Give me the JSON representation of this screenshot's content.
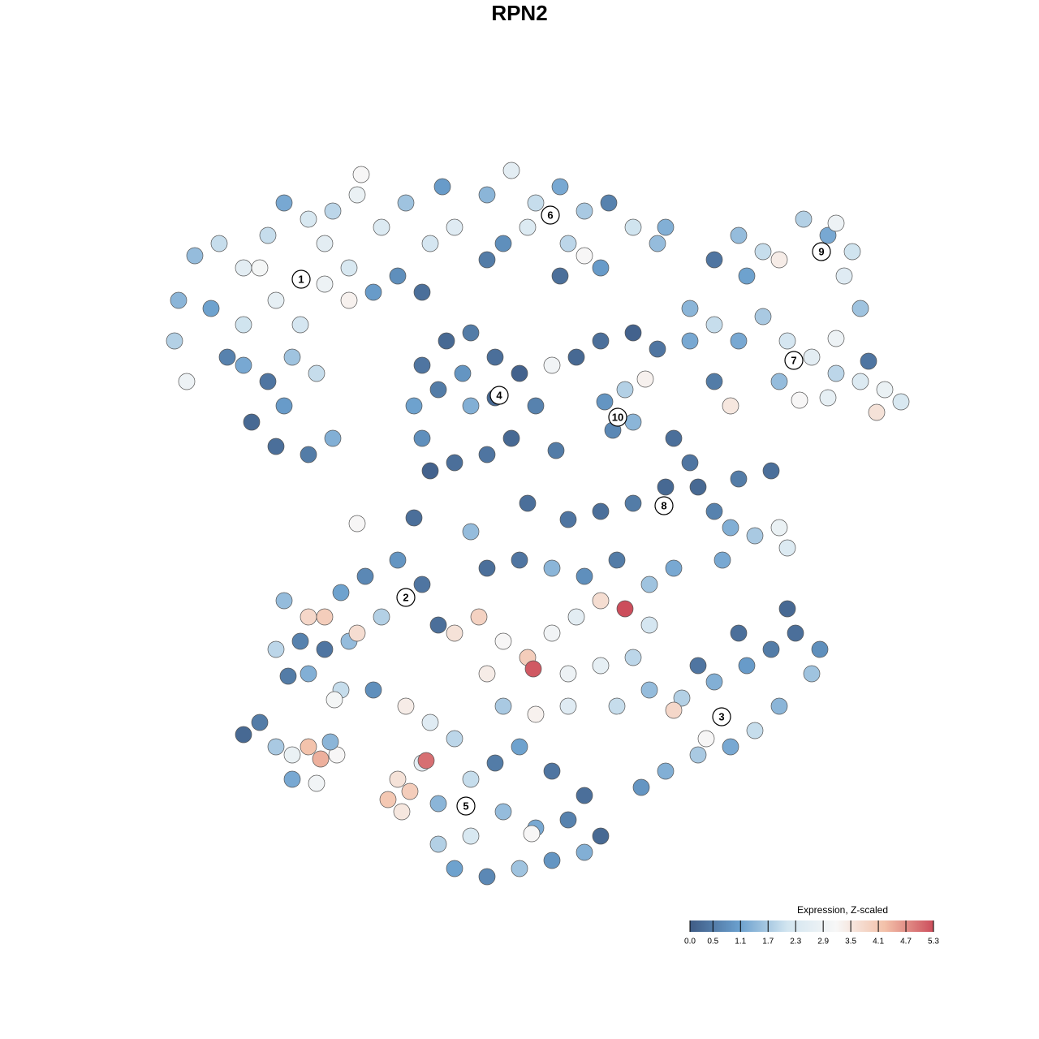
{
  "chart_data": {
    "type": "scatter",
    "title": "RPN2",
    "xlim": [
      0,
      1280
    ],
    "ylim": [
      1280,
      0
    ],
    "x": [
      240,
      270,
      300,
      330,
      350,
      380,
      410,
      440,
      470,
      500,
      530,
      560,
      545,
      220,
      215,
      260,
      300,
      340,
      370,
      400,
      430,
      460,
      490,
      520,
      300,
      330,
      360,
      390,
      310,
      340,
      380,
      410,
      350,
      280,
      230,
      400,
      320,
      430,
      445,
      600,
      630,
      660,
      690,
      720,
      750,
      780,
      810,
      620,
      650,
      700,
      740,
      690,
      720,
      600,
      820,
      520,
      550,
      580,
      610,
      640,
      660,
      630,
      600,
      560,
      520,
      510,
      540,
      580,
      610,
      570,
      530,
      680,
      745,
      770,
      780,
      755,
      795,
      710,
      740,
      780,
      810,
      850,
      880,
      910,
      940,
      960,
      990,
      1020,
      1050,
      1040,
      1060,
      1030,
      920,
      850,
      880,
      910,
      940,
      970,
      1000,
      1030,
      1060,
      1090,
      1110,
      1020,
      960,
      880,
      900,
      985,
      1080,
      1030,
      1070,
      830,
      850,
      860,
      880,
      900,
      930,
      960,
      950,
      910,
      820,
      780,
      740,
      700,
      890,
      970,
      350,
      380,
      400,
      420,
      450,
      490,
      520,
      470,
      430,
      400,
      370,
      340,
      380,
      420,
      460,
      540,
      440,
      355,
      412,
      440,
      560,
      590,
      620,
      650,
      680,
      710,
      740,
      770,
      800,
      600,
      640,
      680,
      720,
      760,
      800,
      830,
      657,
      600,
      700,
      740,
      780,
      620,
      660,
      700,
      760,
      800,
      840,
      880,
      920,
      950,
      980,
      1010,
      1000,
      960,
      930,
      900,
      860,
      820,
      790,
      860,
      910,
      970,
      830,
      870,
      500,
      530,
      560,
      520,
      490,
      525,
      505,
      478,
      540,
      580,
      610,
      640,
      680,
      720,
      700,
      740,
      660,
      620,
      580,
      540,
      560,
      600,
      640,
      680,
      720,
      655,
      495,
      300,
      320,
      340,
      360,
      380,
      395,
      415,
      360,
      390,
      407,
      510,
      580,
      650,
      685
    ],
    "y": [
      315,
      300,
      330,
      290,
      250,
      270,
      260,
      240,
      280,
      250,
      300,
      280,
      230,
      370,
      420,
      380,
      400,
      370,
      400,
      350,
      330,
      360,
      340,
      360,
      450,
      470,
      440,
      460,
      520,
      550,
      560,
      540,
      500,
      440,
      470,
      300,
      330,
      370,
      215,
      240,
      210,
      250,
      230,
      260,
      250,
      280,
      300,
      300,
      280,
      300,
      330,
      340,
      315,
      320,
      280,
      450,
      420,
      410,
      440,
      460,
      500,
      540,
      560,
      570,
      540,
      500,
      480,
      500,
      490,
      460,
      580,
      450,
      495,
      480,
      520,
      530,
      467,
      440,
      420,
      410,
      430,
      420,
      320,
      290,
      310,
      320,
      270,
      290,
      310,
      340,
      380,
      275,
      340,
      380,
      400,
      420,
      390,
      420,
      440,
      460,
      470,
      480,
      495,
      490,
      470,
      470,
      500,
      493,
      508,
      417,
      445,
      540,
      570,
      600,
      630,
      650,
      660,
      650,
      580,
      590,
      600,
      620,
      630,
      640,
      690,
      675,
      740,
      760,
      760,
      730,
      710,
      690,
      720,
      760,
      790,
      800,
      790,
      800,
      830,
      850,
      850,
      770,
      780,
      833,
      862,
      645,
      780,
      760,
      790,
      810,
      780,
      760,
      740,
      750,
      770,
      700,
      690,
      700,
      710,
      690,
      720,
      700,
      824,
      830,
      830,
      820,
      810,
      870,
      880,
      870,
      870,
      850,
      860,
      840,
      820,
      800,
      780,
      800,
      830,
      870,
      900,
      920,
      930,
      950,
      970,
      820,
      780,
      750,
      875,
      910,
      870,
      890,
      910,
      940,
      960,
      937,
      975,
      985,
      990,
      960,
      940,
      920,
      950,
      980,
      1010,
      1030,
      1020,
      1000,
      1030,
      1040,
      1070,
      1080,
      1070,
      1060,
      1050,
      1027,
      1000,
      905,
      890,
      920,
      930,
      920,
      935,
      930,
      960,
      965,
      914,
      638,
      655,
      620,
      555
    ],
    "values": [
      1.5,
      2.0,
      2.6,
      2.0,
      1.2,
      2.3,
      1.9,
      2.8,
      2.4,
      1.6,
      2.2,
      2.5,
      1.0,
      1.4,
      1.8,
      1.1,
      2.1,
      2.7,
      2.2,
      2.9,
      2.3,
      1.0,
      0.8,
      0.3,
      1.2,
      0.4,
      1.6,
      2.0,
      0.2,
      0.3,
      0.5,
      1.3,
      1.0,
      0.6,
      2.9,
      2.6,
      3.1,
      3.3,
      3.2,
      1.4,
      2.6,
      2.0,
      1.2,
      1.7,
      0.6,
      2.1,
      1.5,
      0.8,
      2.4,
      1.9,
      1.0,
      0.3,
      3.2,
      0.5,
      1.3,
      0.4,
      0.2,
      0.5,
      0.3,
      0.1,
      0.6,
      0.2,
      0.4,
      0.3,
      0.8,
      1.1,
      0.5,
      1.3,
      0.2,
      0.9,
      0.1,
      3.0,
      0.9,
      1.8,
      1.4,
      0.7,
      3.3,
      0.2,
      0.3,
      0.1,
      0.4,
      1.2,
      0.4,
      1.5,
      2.0,
      3.4,
      1.8,
      1.2,
      2.1,
      2.5,
      1.6,
      2.9,
      1.1,
      1.4,
      2.0,
      1.2,
      1.7,
      2.2,
      2.6,
      1.9,
      2.4,
      2.8,
      2.3,
      2.7,
      1.5,
      0.5,
      3.5,
      3.2,
      3.6,
      2.9,
      0.4,
      0.3,
      0.4,
      0.2,
      0.6,
      1.3,
      1.7,
      2.8,
      0.3,
      0.5,
      0.2,
      0.5,
      0.3,
      0.4,
      1.2,
      2.4,
      1.5,
      3.8,
      4.0,
      1.1,
      0.7,
      0.9,
      0.4,
      1.8,
      1.5,
      0.4,
      0.6,
      1.9,
      1.3,
      2.0,
      0.8,
      0.3,
      3.7,
      0.5,
      3.1,
      3.2,
      3.6,
      3.9,
      3.2,
      4.0,
      3.0,
      2.6,
      3.7,
      5.3,
      2.2,
      0.3,
      0.4,
      1.4,
      0.8,
      0.5,
      1.6,
      1.2,
      5.2,
      3.4,
      2.9,
      2.7,
      1.9,
      1.7,
      3.3,
      2.5,
      2.0,
      1.5,
      1.8,
      1.3,
      1.0,
      0.5,
      0.3,
      0.8,
      1.6,
      1.4,
      2.0,
      1.2,
      1.7,
      1.3,
      0.9,
      0.4,
      0.3,
      0.2,
      3.8,
      3.2,
      3.4,
      2.5,
      1.9,
      2.6,
      3.6,
      5.0,
      4.0,
      4.1,
      1.4,
      2.0,
      0.5,
      1.1,
      0.4,
      0.3,
      0.6,
      0.2,
      1.2,
      1.5,
      2.3,
      1.8,
      1.1,
      0.7,
      1.6,
      0.9,
      1.3,
      3.2,
      3.5,
      0.2,
      0.5,
      1.7,
      2.8,
      4.2,
      4.4,
      3.2,
      1.2,
      3.0,
      1.4,
      0.3,
      1.5,
      0.3,
      0.5
    ],
    "annotations": [
      {
        "text": "1",
        "x": 371,
        "y": 344
      },
      {
        "text": "2",
        "x": 500,
        "y": 736
      },
      {
        "text": "3",
        "x": 889,
        "y": 883
      },
      {
        "text": "4",
        "x": 615,
        "y": 487
      },
      {
        "text": "5",
        "x": 574,
        "y": 993
      },
      {
        "text": "6",
        "x": 678,
        "y": 265
      },
      {
        "text": "7",
        "x": 978,
        "y": 444
      },
      {
        "text": "8",
        "x": 818,
        "y": 623
      },
      {
        "text": "9",
        "x": 1012,
        "y": 310
      },
      {
        "text": "10",
        "x": 761,
        "y": 514
      }
    ],
    "colorbar": {
      "title": "Expression, Z-scaled",
      "clim": [
        0,
        5.3
      ],
      "ticks": [
        {
          "value": 0,
          "label": "0.0"
        },
        0.5,
        1.1,
        1.7,
        2.3,
        2.9,
        3.5,
        4.1,
        4.7,
        5.3
      ],
      "colors": [
        "#3f5c86",
        "#6a9fcd",
        "#d2e5f0",
        "#f7f7f7",
        "#f3c1a9",
        "#cc4e5c"
      ]
    }
  }
}
